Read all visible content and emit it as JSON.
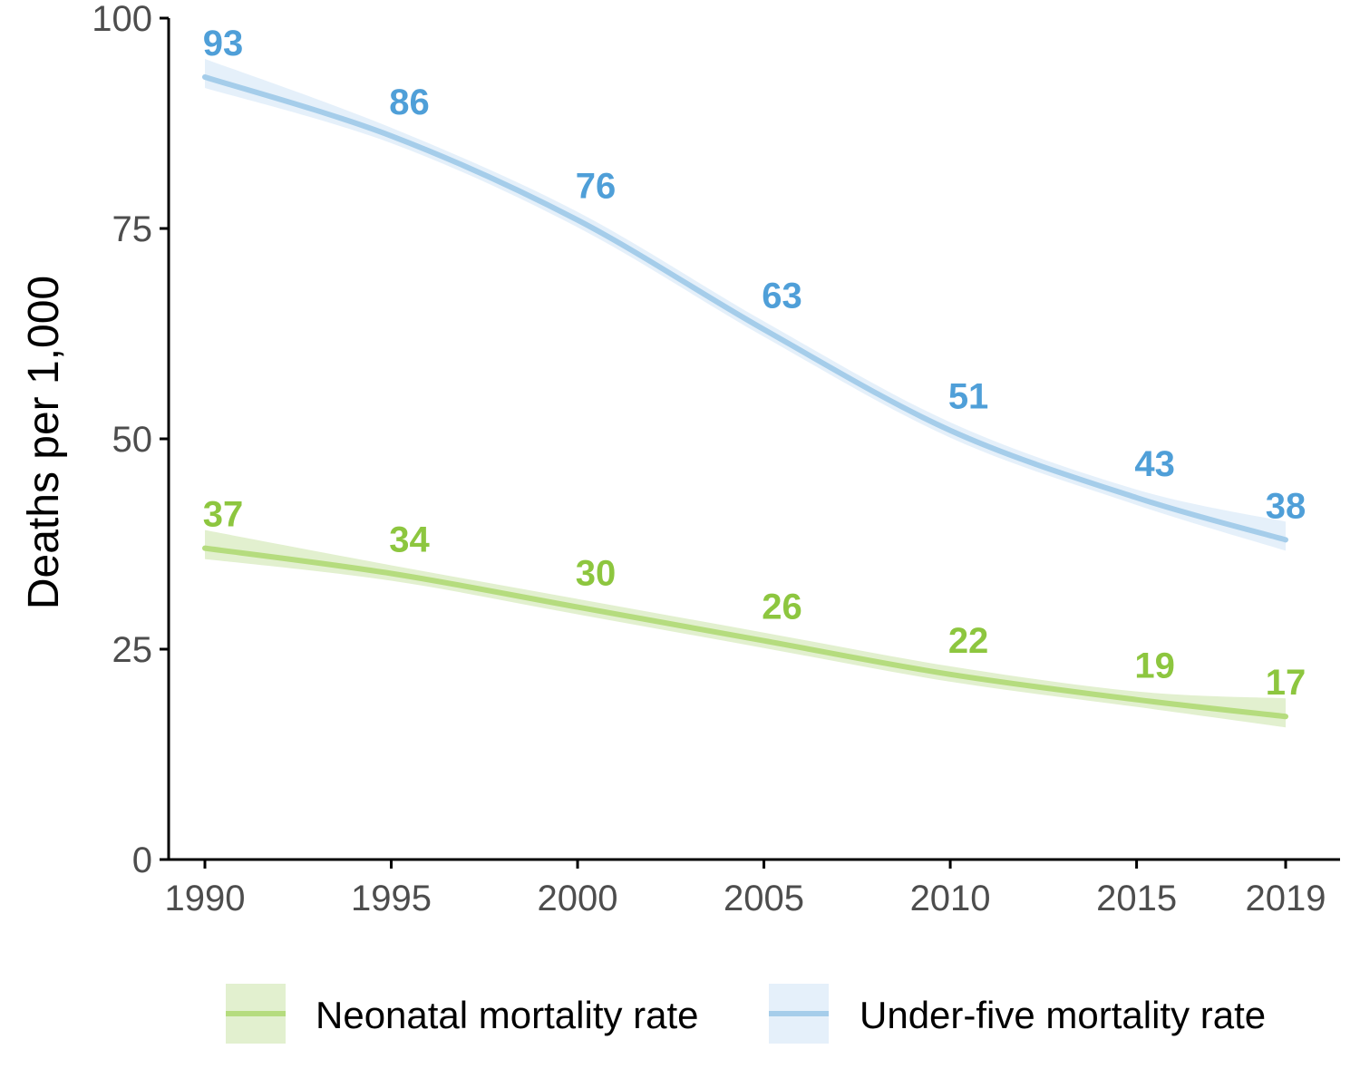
{
  "chart_data": {
    "type": "line",
    "x": [
      1990,
      1995,
      2000,
      2005,
      2010,
      2015,
      2019
    ],
    "x_ticks": [
      "1990",
      "1995",
      "2000",
      "2005",
      "2010",
      "2015",
      "2019"
    ],
    "y_ticks": [
      "0",
      "25",
      "50",
      "75",
      "100"
    ],
    "ylabel": "Deaths per 1,000",
    "xlabel": "",
    "title": "",
    "ylim": [
      0,
      100
    ],
    "xlim": [
      1989,
      2021
    ],
    "grid": false,
    "legend_position": "bottom",
    "series": [
      {
        "name": "Neonatal mortality rate",
        "color": "#8dc63f",
        "line_color": "#b5dc7e",
        "band_color": "#e2f0cf",
        "values": [
          37,
          34,
          30,
          26,
          22,
          19,
          17
        ],
        "labels": [
          "37",
          "34",
          "30",
          "26",
          "22",
          "19",
          "17"
        ]
      },
      {
        "name": "Under-five mortality rate",
        "color": "#4f9fd8",
        "line_color": "#a5cdea",
        "band_color": "#e5f0fa",
        "values": [
          93,
          86,
          76,
          63,
          51,
          43,
          38
        ],
        "labels": [
          "93",
          "86",
          "76",
          "63",
          "51",
          "43",
          "38"
        ]
      }
    ]
  }
}
